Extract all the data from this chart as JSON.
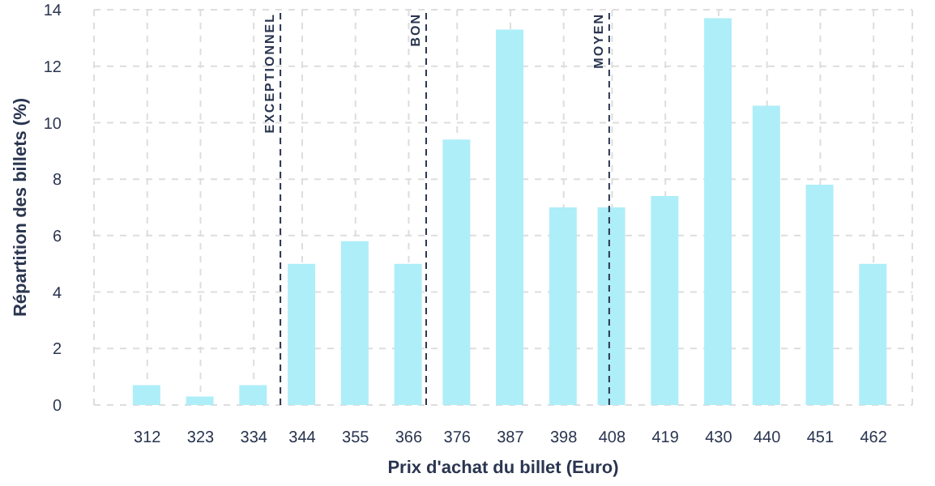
{
  "chart_data": {
    "type": "bar",
    "xlabel": "Prix d'achat du billet (Euro)",
    "ylabel": "Répartition des billets (%)",
    "x": [
      312,
      323,
      334,
      344,
      355,
      366,
      376,
      387,
      398,
      408,
      419,
      430,
      440,
      451,
      462
    ],
    "values": [
      0.7,
      0.3,
      0.7,
      5,
      5.8,
      5,
      9.4,
      13.3,
      7,
      7,
      7.4,
      13.7,
      10.6,
      7.8,
      5
    ],
    "color": "#aeeef8",
    "xlim": [
      301,
      470
    ],
    "xticks": [
      312,
      323,
      334,
      344,
      355,
      366,
      376,
      387,
      398,
      408,
      419,
      430,
      440,
      451,
      462
    ],
    "ylim": [
      0,
      14
    ],
    "yticks": [
      0,
      2,
      4,
      6,
      8,
      10,
      12,
      14
    ],
    "grid": true,
    "ref_lines": [
      {
        "axis": "x",
        "value": 339.5,
        "label": "EXCEPTIONNEL",
        "color": "#2a3550",
        "line_style": "dashed"
      },
      {
        "axis": "x",
        "value": 369.6,
        "label": "BON",
        "color": "#2a3550",
        "line_style": "dashed"
      },
      {
        "axis": "x",
        "value": 407.4,
        "label": "MOYEN",
        "color": "#2a3550",
        "line_style": "dashed"
      }
    ]
  }
}
